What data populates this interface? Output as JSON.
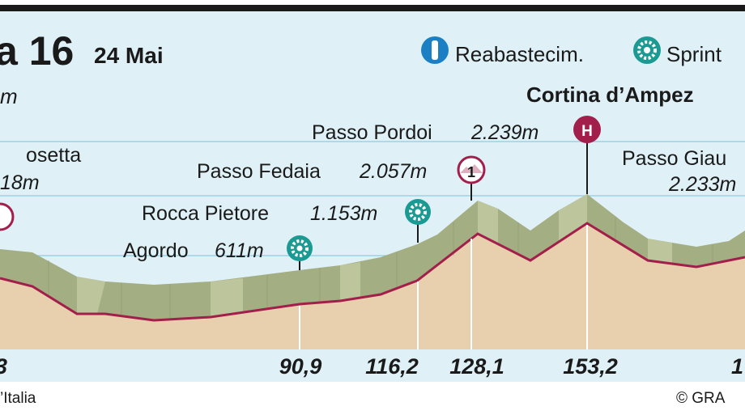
{
  "header": {
    "stage_title": "a 16",
    "date": "24 Mai",
    "left_partial_label": "m"
  },
  "legend": {
    "items": [
      {
        "icon": "water-bottle-icon",
        "label": "Reabastecim."
      },
      {
        "icon": "sprint-gear-icon",
        "label": "Sprint"
      }
    ]
  },
  "places": [
    {
      "id": "left-partial",
      "name": "osetta",
      "altitude": "18m",
      "icon": "climb-cat-icon"
    },
    {
      "id": "agordo",
      "name": "Agordo",
      "altitude": "611m",
      "icon": "sprint-gear-icon"
    },
    {
      "id": "rocca",
      "name": "Rocca Pietore",
      "altitude": "1.153m",
      "icon": "sprint-gear-icon"
    },
    {
      "id": "fedaia",
      "name": "Passo Fedaia",
      "altitude": "2.057m",
      "icon": "climb-cat-1-icon",
      "badge": "1"
    },
    {
      "id": "pordoi",
      "name": "Passo Pordoi",
      "altitude": "2.239m",
      "icon": "climb-hc-icon",
      "badge": "H"
    },
    {
      "id": "cortina",
      "name": "Cortina d’Ampez",
      "altitude": "",
      "icon": ""
    },
    {
      "id": "giau",
      "name": "Passo Giau",
      "altitude": "2.233m",
      "icon": ""
    }
  ],
  "km_markers": [
    "3",
    "90,9",
    "116,2",
    "128,1",
    "153,2",
    "1"
  ],
  "footer": {
    "source": "’Italia",
    "credit": "© GRA"
  },
  "colors": {
    "sky": "#dff1f7",
    "grid": "#8fcde3",
    "ground": "#e8cfad",
    "terrain": "#a3ae82",
    "terrain_light": "#c6cca6",
    "route": "#a21f4b",
    "icon_teal": "#1b9a94",
    "icon_blue": "#1b7fc4"
  }
}
